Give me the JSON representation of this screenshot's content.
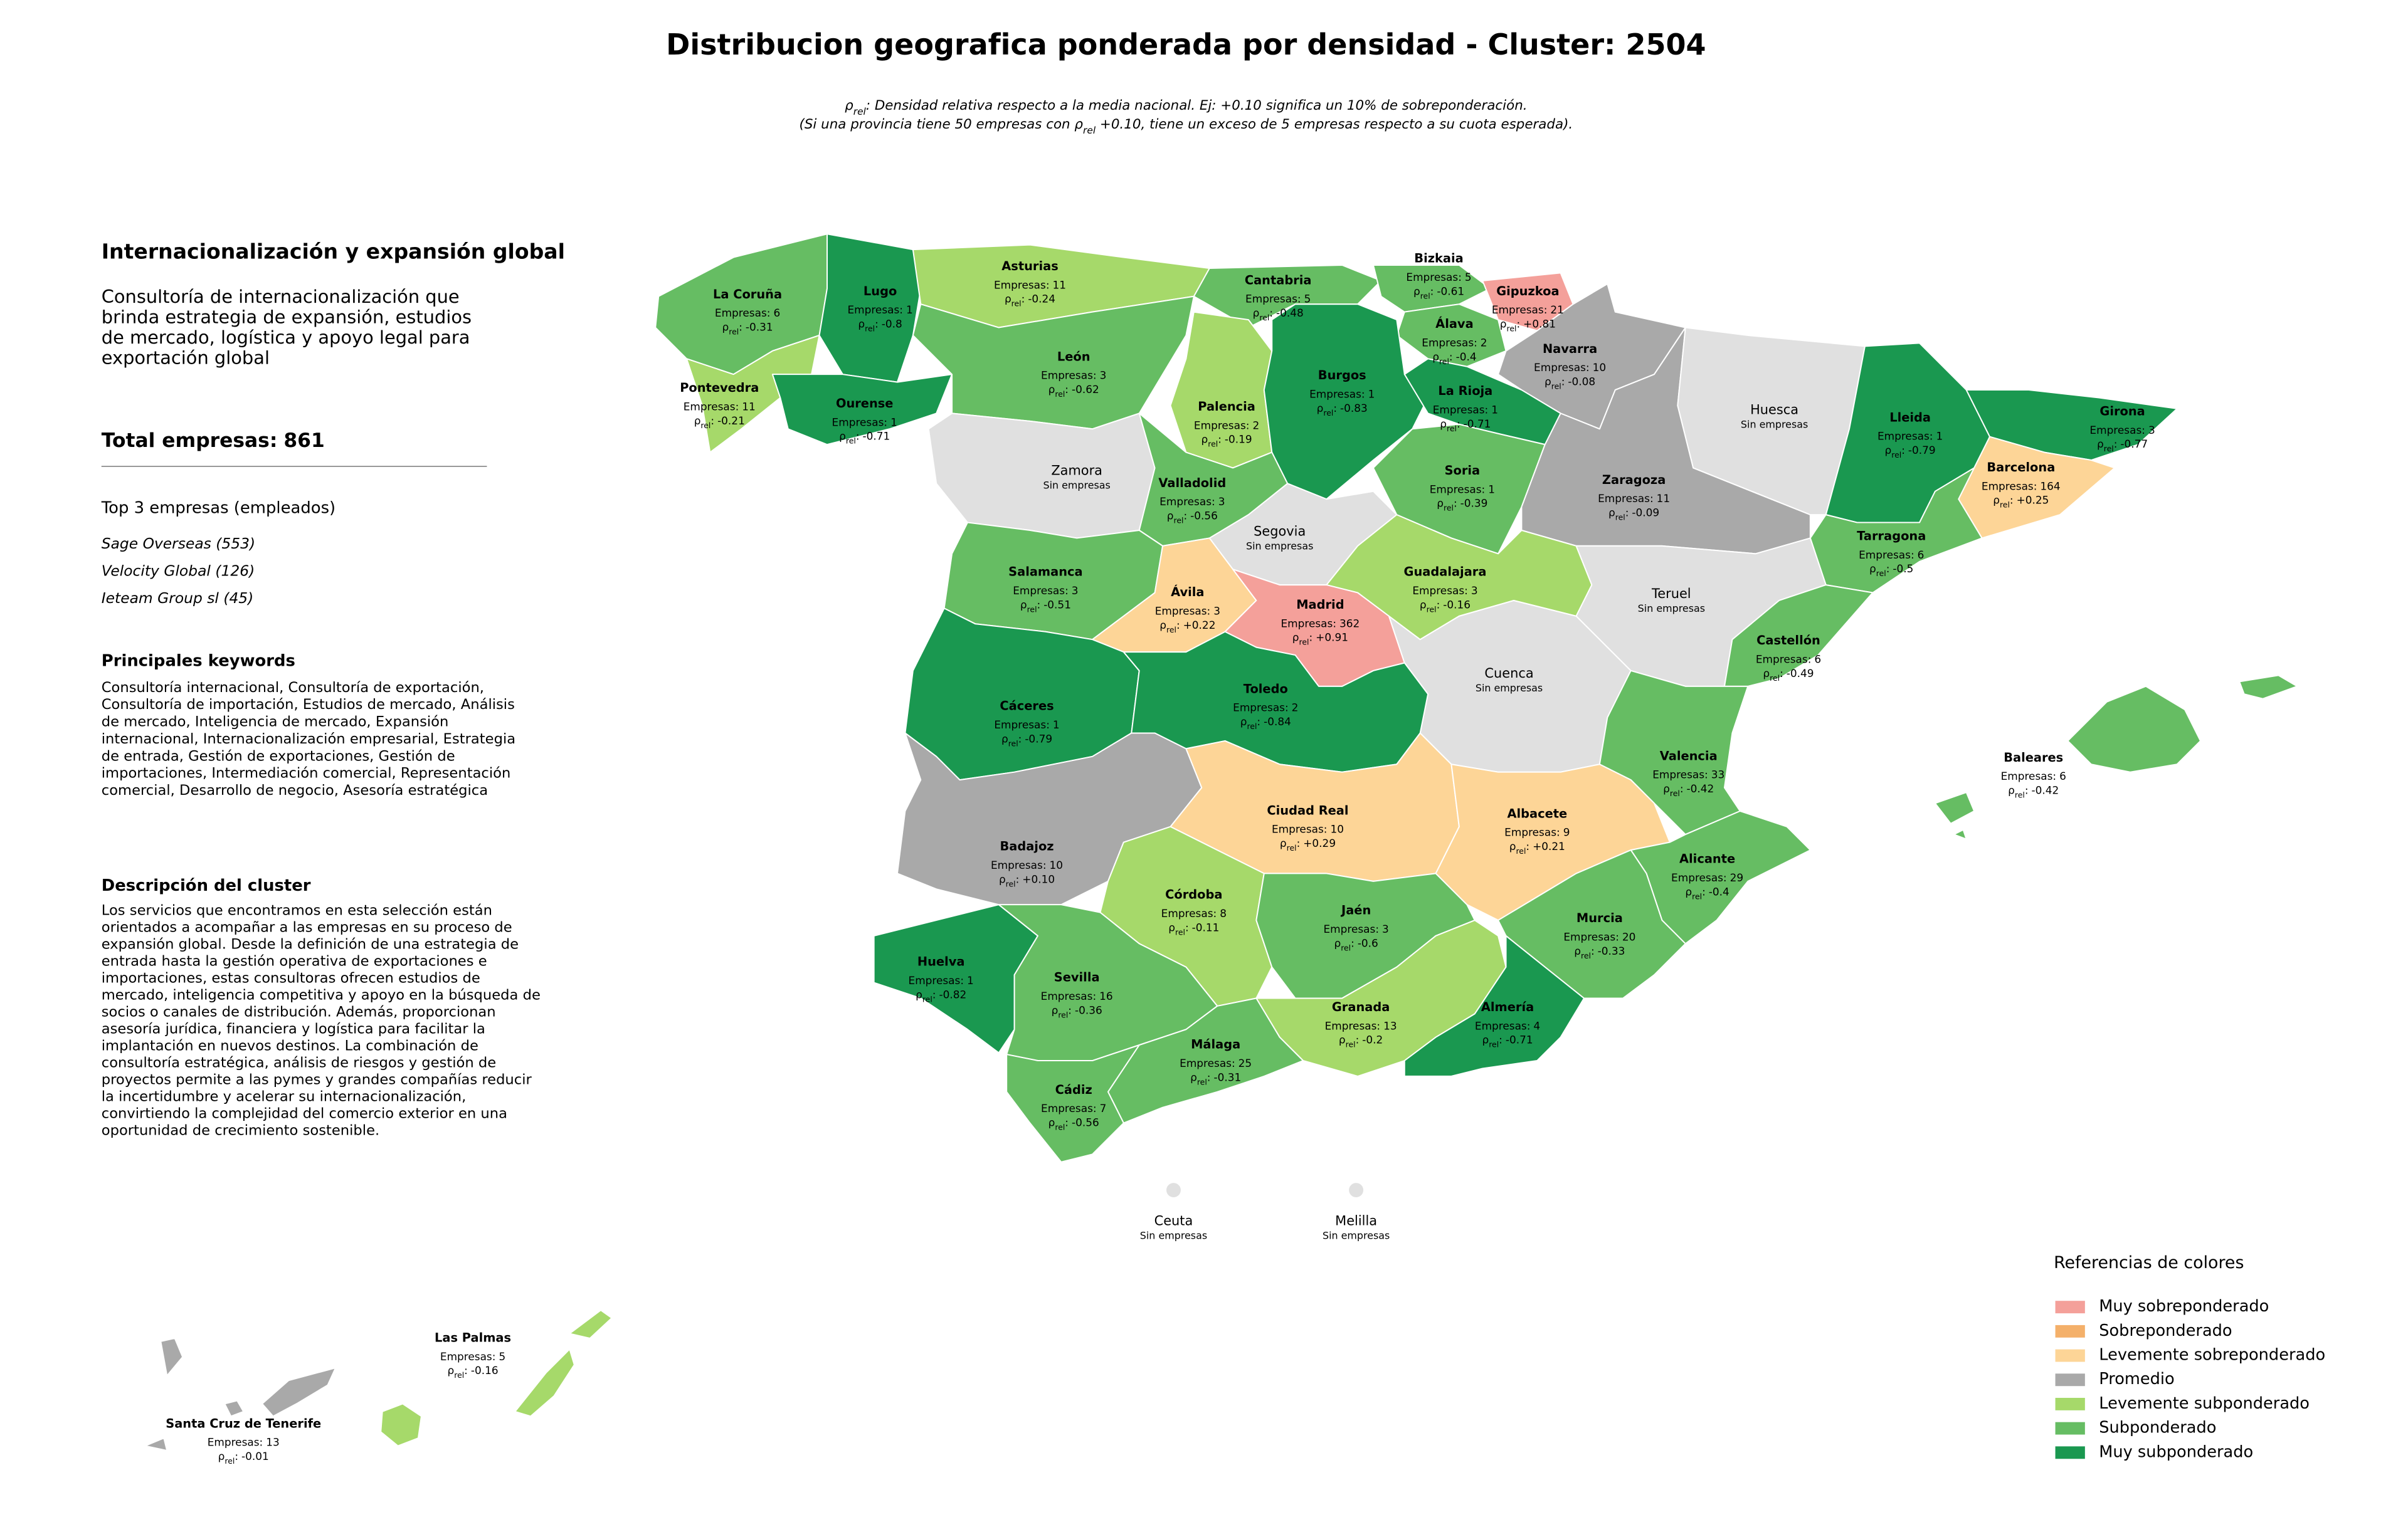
{
  "title": "Distribucion geografica ponderada por densidad - Cluster: 2504",
  "rho_symbol": "ρ",
  "rho_subscript": "rel",
  "rho_separator": ":",
  "empresas_prefix": "Empresas:",
  "note": {
    "line1": ": Densidad relativa respecto a la media nacional. Ej: +0.10 significa un 10% de sobreponderación.",
    "line2_before": "(Si una provincia tiene 50 empresas con ",
    "line2_after": " +0.10, tiene un exceso de 5 empresas respecto a su cuota esperada)."
  },
  "panel": {
    "heading": "Internacionalización y expansión global",
    "summary": [
      "Consultoría de internacionalización que",
      "brinda estrategia de expansión, estudios",
      "de mercado, logística y apoyo legal para",
      "exportación global"
    ],
    "total_label": "Total empresas:",
    "total": 861,
    "top_heading": "Top 3 empresas (empleados)",
    "top": [
      "Sage Overseas (553)",
      "Velocity Global (126)",
      "Ieteam Group sl (45)"
    ],
    "keywords_heading": "Principales keywords",
    "keywords": [
      "Consultoría internacional, Consultoría de exportación,",
      "Consultoría de importación, Estudios de mercado, Análisis",
      "de mercado, Inteligencia de mercado, Expansión",
      "internacional, Internacionalización empresarial, Estrategia",
      "de entrada, Gestión de exportaciones, Gestión de",
      "importaciones, Intermediación comercial, Representación",
      "comercial, Desarrollo de negocio, Asesoría estratégica"
    ],
    "description_heading": "Descripción del cluster",
    "description": [
      "Los servicios que encontramos en esta selección están",
      "orientados a acompañar a las empresas en su proceso de",
      "expansión global. Desde la definición de una estrategia de",
      "entrada hasta la gestión operativa de exportaciones e",
      "importaciones, estas consultoras ofrecen estudios de",
      "mercado, inteligencia competitiva y apoyo en la búsqueda de",
      "socios o canales de distribución. Además, proporcionan",
      "asesoría jurídica, financiera y logística para facilitar la",
      "implantación en nuevos destinos. La combinación de",
      "consultoría estratégica, análisis de riesgos y gestión de",
      "proyectos permite a las pymes y grandes compañías reducir",
      "la incertidumbre y acelerar su internacionalización,",
      "convirtiendo la complejidad del comercio exterior en una",
      "oportunidad de crecimiento sostenible."
    ]
  },
  "legend": {
    "title": "Referencias de colores",
    "categories": [
      {
        "name": "Muy sobreponderado",
        "color": "#f4a09a"
      },
      {
        "name": "Sobreponderado",
        "color": "#f4b06a"
      },
      {
        "name": "Levemente sobreponderado",
        "color": "#fdd597"
      },
      {
        "name": "Promedio",
        "color": "#a9a9a9"
      },
      {
        "name": "Levemente subponderado",
        "color": "#a6d96a"
      },
      {
        "name": "Subponderado",
        "color": "#66bd63"
      },
      {
        "name": "Muy subponderado",
        "color": "#1a9850"
      }
    ]
  },
  "no_data_color": "#e0e0e0",
  "provinces": [
    {
      "name": "La Coruña",
      "empresas": 6,
      "rho": -0.31,
      "category": 5
    },
    {
      "name": "Lugo",
      "empresas": 1,
      "rho": -0.8,
      "category": 6
    },
    {
      "name": "Pontevedra",
      "empresas": 11,
      "rho": -0.21,
      "category": 4
    },
    {
      "name": "Ourense",
      "empresas": 1,
      "rho": -0.71,
      "category": 6
    },
    {
      "name": "Asturias",
      "empresas": 11,
      "rho": -0.24,
      "category": 4
    },
    {
      "name": "Cantabria",
      "empresas": 5,
      "rho": -0.48,
      "category": 5
    },
    {
      "name": "Bizkaia",
      "empresas": 5,
      "rho": -0.61,
      "category": 5
    },
    {
      "name": "Gipuzkoa",
      "empresas": 21,
      "rho": 0.81,
      "rho_label": "+0.81",
      "category": 0
    },
    {
      "name": "Álava",
      "empresas": 2,
      "rho": -0.4,
      "category": 5
    },
    {
      "name": "Navarra",
      "empresas": 10,
      "rho": -0.08,
      "category": 3
    },
    {
      "name": "León",
      "empresas": 3,
      "rho": -0.62,
      "category": 5
    },
    {
      "name": "Palencia",
      "empresas": 2,
      "rho": -0.19,
      "category": 4
    },
    {
      "name": "Burgos",
      "empresas": 1,
      "rho": -0.83,
      "category": 6
    },
    {
      "name": "La Rioja",
      "empresas": 1,
      "rho": -0.71,
      "category": 6
    },
    {
      "name": "Soria",
      "empresas": 1,
      "rho": -0.39,
      "category": 5
    },
    {
      "name": "Zaragoza",
      "empresas": 11,
      "rho": -0.09,
      "category": 3
    },
    {
      "name": "Huesca",
      "status": "Sin empresas"
    },
    {
      "name": "Lleida",
      "empresas": 1,
      "rho": -0.79,
      "category": 6
    },
    {
      "name": "Girona",
      "empresas": 3,
      "rho": -0.77,
      "category": 6
    },
    {
      "name": "Barcelona",
      "empresas": 164,
      "rho": 0.25,
      "rho_label": "+0.25",
      "category": 2
    },
    {
      "name": "Tarragona",
      "empresas": 6,
      "rho": -0.5,
      "category": 5
    },
    {
      "name": "Zamora",
      "status": "Sin empresas"
    },
    {
      "name": "Valladolid",
      "empresas": 3,
      "rho": -0.56,
      "category": 5
    },
    {
      "name": "Segovia",
      "status": "Sin empresas"
    },
    {
      "name": "Guadalajara",
      "empresas": 3,
      "rho": -0.16,
      "category": 4
    },
    {
      "name": "Teruel",
      "status": "Sin empresas"
    },
    {
      "name": "Salamanca",
      "empresas": 3,
      "rho": -0.51,
      "category": 5
    },
    {
      "name": "Ávila",
      "empresas": 3,
      "rho": 0.22,
      "rho_label": "+0.22",
      "category": 2
    },
    {
      "name": "Madrid",
      "empresas": 362,
      "rho": 0.91,
      "rho_label": "+0.91",
      "category": 0
    },
    {
      "name": "Castellón",
      "empresas": 6,
      "rho": -0.49,
      "category": 5
    },
    {
      "name": "Cuenca",
      "status": "Sin empresas"
    },
    {
      "name": "Cáceres",
      "empresas": 1,
      "rho": -0.79,
      "category": 6
    },
    {
      "name": "Toledo",
      "empresas": 2,
      "rho": -0.84,
      "category": 6
    },
    {
      "name": "Valencia",
      "empresas": 33,
      "rho": -0.42,
      "category": 5
    },
    {
      "name": "Badajoz",
      "empresas": 10,
      "rho": 0.1,
      "rho_label": "+0.10",
      "category": 3
    },
    {
      "name": "Ciudad Real",
      "empresas": 10,
      "rho": 0.29,
      "rho_label": "+0.29",
      "category": 2
    },
    {
      "name": "Albacete",
      "empresas": 9,
      "rho": 0.21,
      "rho_label": "+0.21",
      "category": 2
    },
    {
      "name": "Alicante",
      "empresas": 29,
      "rho": -0.4,
      "category": 5
    },
    {
      "name": "Murcia",
      "empresas": 20,
      "rho": -0.33,
      "category": 5
    },
    {
      "name": "Córdoba",
      "empresas": 8,
      "rho": -0.11,
      "category": 4
    },
    {
      "name": "Jaén",
      "empresas": 3,
      "rho": -0.6,
      "category": 5
    },
    {
      "name": "Huelva",
      "empresas": 1,
      "rho": -0.82,
      "category": 6
    },
    {
      "name": "Sevilla",
      "empresas": 16,
      "rho": -0.36,
      "category": 5
    },
    {
      "name": "Granada",
      "empresas": 13,
      "rho": -0.2,
      "category": 4
    },
    {
      "name": "Almería",
      "empresas": 4,
      "rho": -0.71,
      "category": 6
    },
    {
      "name": "Málaga",
      "empresas": 25,
      "rho": -0.31,
      "category": 5
    },
    {
      "name": "Cádiz",
      "empresas": 7,
      "rho": -0.56,
      "category": 5
    },
    {
      "name": "Baleares",
      "empresas": 6,
      "rho": -0.42,
      "category": 5
    },
    {
      "name": "Las Palmas",
      "empresas": 5,
      "rho": -0.16,
      "category": 4
    },
    {
      "name": "Santa Cruz de Tenerife",
      "empresas": 13,
      "rho": -0.01,
      "category": 3
    },
    {
      "name": "Ceuta",
      "status": "Sin empresas"
    },
    {
      "name": "Melilla",
      "status": "Sin empresas"
    }
  ]
}
